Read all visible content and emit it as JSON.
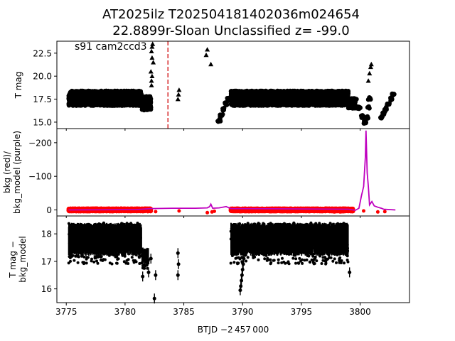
{
  "figure": {
    "title_line1": "AT2025ilz  T202504181402036m024654",
    "title_line2": "22.8899r-Sloan Unclassified z= -99.0",
    "xlabel": "BTJD −2 457 000",
    "x_ticks": [
      "3775",
      "3780",
      "3785",
      "3790",
      "3795",
      "3800"
    ]
  },
  "chart_data": [
    {
      "type": "scatter",
      "panel": "top",
      "annotation": "s91 cam2ccd3",
      "ylabel": "T mag",
      "y_inverted": true,
      "xlim": [
        3774.2,
        3804.2
      ],
      "ylim": [
        23.8,
        14.3
      ],
      "y_ticks": [
        "15.0",
        "17.5",
        "20.0",
        "22.5"
      ],
      "vline_x": 3783.65,
      "vline_color": "#d62728",
      "series": [
        {
          "segment": "block-1",
          "x_range": [
            3775.2,
            3781.4
          ],
          "y_range": [
            16.8,
            18.4
          ],
          "marker": "circle"
        },
        {
          "segment": "block-1-tail",
          "x_range": [
            3781.4,
            3782.2
          ],
          "y_range": [
            16.3,
            17.8
          ],
          "marker": "circle"
        },
        {
          "segment": "block-2",
          "x_range": [
            3789.0,
            3799.0
          ],
          "y_range": [
            16.8,
            18.4
          ],
          "marker": "circle"
        },
        {
          "segment": "block-2-tail",
          "x_range": [
            3799.0,
            3799.6
          ],
          "y_range": [
            16.5,
            17.6
          ],
          "marker": "circle"
        },
        {
          "segment": "rise-1",
          "points": [
            [
              3788.0,
              15.2
            ],
            [
              3788.2,
              15.7
            ],
            [
              3788.4,
              16.4
            ],
            [
              3788.6,
              17.0
            ],
            [
              3788.8,
              17.5
            ]
          ],
          "marker": "circle"
        },
        {
          "segment": "rise-2",
          "points": [
            [
              3799.6,
              17.4
            ],
            [
              3799.9,
              16.6
            ],
            [
              3800.2,
              15.6
            ],
            [
              3800.4,
              15.0
            ],
            [
              3800.6,
              15.5
            ],
            [
              3800.7,
              16.6
            ],
            [
              3800.8,
              17.6
            ]
          ],
          "marker": "circle"
        },
        {
          "segment": "decay",
          "points": [
            [
              3801.8,
              15.5
            ],
            [
              3802.0,
              16.0
            ],
            [
              3802.2,
              16.5
            ],
            [
              3802.4,
              17.0
            ],
            [
              3802.6,
              17.5
            ],
            [
              3802.8,
              18.0
            ]
          ],
          "marker": "circle"
        },
        {
          "segment": "limits",
          "points": [
            [
              3782.25,
              19.0
            ],
            [
              3782.25,
              19.5
            ],
            [
              3782.3,
              20.0
            ],
            [
              3782.2,
              20.5
            ],
            [
              3782.3,
              22.0
            ],
            [
              3782.25,
              22.7
            ],
            [
              3782.3,
              23.2
            ],
            [
              3782.35,
              23.5
            ],
            [
              3782.4,
              21.5
            ],
            [
              3784.5,
              17.5
            ],
            [
              3784.55,
              18.0
            ],
            [
              3784.6,
              18.5
            ],
            [
              3786.9,
              22.3
            ],
            [
              3787.0,
              22.9
            ],
            [
              3787.3,
              21.3
            ],
            [
              3800.7,
              19.5
            ],
            [
              3800.8,
              20.3
            ],
            [
              3800.9,
              21.0
            ],
            [
              3800.95,
              21.3
            ]
          ],
          "marker": "triangle"
        }
      ]
    },
    {
      "type": "line",
      "panel": "middle",
      "ylabel_line1": "bkg (red)/",
      "ylabel_line2": "bkg_model (purple)",
      "xlim": [
        3774.2,
        3804.2
      ],
      "ylim": [
        -242,
        18
      ],
      "y_ticks": [
        "0",
        "−100",
        "−200"
      ],
      "bkg_color": "#ff0000",
      "model_color": "#bf00bf",
      "bkg": [
        {
          "x_range": [
            3775.2,
            3782.2
          ],
          "y_range": [
            -4,
            4
          ]
        },
        {
          "x_range": [
            3789.0,
            3799.4
          ],
          "y_range": [
            -4,
            4
          ]
        }
      ],
      "bkg_outliers": [
        [
          3782.6,
          5
        ],
        [
          3784.6,
          3
        ],
        [
          3787.0,
          8
        ],
        [
          3787.4,
          6
        ],
        [
          3787.6,
          4
        ],
        [
          3797.8,
          6
        ],
        [
          3798.3,
          6
        ],
        [
          3798.9,
          4
        ],
        [
          3800.3,
          3
        ],
        [
          3801.5,
          6
        ],
        [
          3802.1,
          5
        ]
      ],
      "model": [
        [
          3775.2,
          0
        ],
        [
          3781.0,
          -1
        ],
        [
          3782.2,
          -4
        ],
        [
          3784.0,
          -5
        ],
        [
          3786.0,
          -5
        ],
        [
          3787.0,
          -6
        ],
        [
          3787.2,
          -10
        ],
        [
          3787.3,
          -17
        ],
        [
          3787.45,
          -5
        ],
        [
          3788.0,
          -6
        ],
        [
          3788.6,
          -10
        ],
        [
          3789.0,
          -4
        ],
        [
          3799.0,
          -2
        ],
        [
          3799.6,
          1
        ],
        [
          3799.9,
          -5
        ],
        [
          3800.1,
          -40
        ],
        [
          3800.3,
          -70
        ],
        [
          3800.45,
          -160
        ],
        [
          3800.5,
          -236
        ],
        [
          3800.6,
          -110
        ],
        [
          3800.7,
          -70
        ],
        [
          3800.8,
          -15
        ],
        [
          3801.0,
          -25
        ],
        [
          3801.2,
          -12
        ],
        [
          3801.5,
          -8
        ],
        [
          3801.8,
          -5
        ],
        [
          3802.0,
          -2
        ],
        [
          3803.0,
          0
        ]
      ]
    },
    {
      "type": "scatter",
      "panel": "bottom",
      "ylabel_line1": "T mag −",
      "ylabel_line2": "bkg_model",
      "y_inverted": true,
      "xlim": [
        3774.2,
        3804.2
      ],
      "ylim": [
        18.65,
        15.5
      ],
      "y_ticks": [
        "16",
        "17",
        "18"
      ],
      "series": [
        {
          "segment": "block-1",
          "x_range": [
            3775.2,
            3781.4
          ],
          "y_range": [
            16.9,
            18.4
          ],
          "err_range": [
            17.2,
            18.4
          ]
        },
        {
          "segment": "block-1-tail",
          "x_range": [
            3781.4,
            3782.0
          ],
          "y_range": [
            16.7,
            17.3
          ],
          "err_range": [
            16.9,
            17.5
          ]
        },
        {
          "segment": "block-2",
          "x_range": [
            3789.0,
            3799.0
          ],
          "y_range": [
            16.9,
            18.4
          ],
          "err_range": [
            17.2,
            18.4
          ]
        },
        {
          "segment": "rise",
          "points": [
            [
              3789.8,
              15.95
            ],
            [
              3789.85,
              16.1
            ],
            [
              3789.9,
              16.3
            ],
            [
              3789.95,
              16.5
            ],
            [
              3790.0,
              16.7
            ],
            [
              3790.05,
              16.9
            ],
            [
              3790.1,
              17.1
            ]
          ]
        },
        {
          "segment": "isolated",
          "points": [
            [
              3781.5,
              16.45
            ],
            [
              3782.0,
              16.6
            ],
            [
              3782.5,
              15.65
            ],
            [
              3782.6,
              16.5
            ],
            [
              3782.2,
              17.1
            ],
            [
              3784.5,
              16.5
            ],
            [
              3784.55,
              16.9
            ],
            [
              3784.5,
              17.3
            ],
            [
              3799.1,
              16.6
            ]
          ]
        }
      ]
    }
  ]
}
